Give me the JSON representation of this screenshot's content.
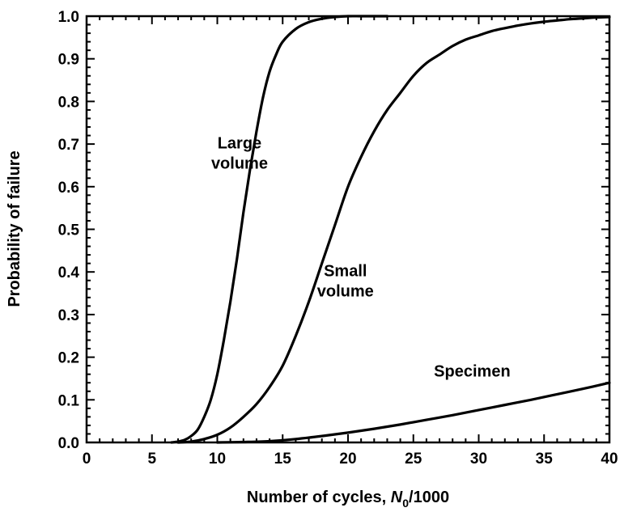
{
  "chart_data": {
    "type": "line",
    "xlabel": "Number of cycles, ",
    "xlabel_var": "N",
    "xlabel_sub": "0",
    "xlabel_suffix": "/1000",
    "ylabel": "Probability of failure",
    "xlim": [
      0,
      40
    ],
    "ylim": [
      0,
      1.0
    ],
    "x_ticks": [
      "0",
      "5",
      "10",
      "15",
      "20",
      "25",
      "30",
      "35",
      "40"
    ],
    "y_ticks": [
      "0.0",
      "0.1",
      "0.2",
      "0.3",
      "0.4",
      "0.5",
      "0.6",
      "0.7",
      "0.8",
      "0.9",
      "1.0"
    ],
    "grid": false,
    "series": [
      {
        "x": [
          6.5,
          7,
          7.5,
          8,
          8.5,
          9,
          9.5,
          10,
          10.5,
          11,
          11.5,
          12,
          12.5,
          13,
          13.5,
          14,
          14.5,
          15,
          16,
          17,
          18,
          19,
          20,
          21,
          22,
          23
        ],
        "y": [
          0.0,
          0.002,
          0.006,
          0.015,
          0.03,
          0.06,
          0.1,
          0.16,
          0.24,
          0.33,
          0.43,
          0.54,
          0.64,
          0.73,
          0.81,
          0.87,
          0.91,
          0.94,
          0.97,
          0.986,
          0.994,
          0.998,
          1.0,
          1.0,
          1.0,
          1.0
        ]
      },
      {
        "x": [
          7,
          8,
          9,
          10,
          11,
          12,
          13,
          14,
          15,
          16,
          17,
          18,
          19,
          20,
          21,
          22,
          23,
          24,
          25,
          26,
          27,
          28,
          29,
          30,
          31,
          32,
          33,
          34,
          35,
          36,
          37,
          38,
          39,
          40
        ],
        "y": [
          0.0,
          0.002,
          0.008,
          0.018,
          0.035,
          0.06,
          0.09,
          0.13,
          0.18,
          0.25,
          0.33,
          0.42,
          0.51,
          0.6,
          0.67,
          0.73,
          0.78,
          0.82,
          0.86,
          0.89,
          0.91,
          0.93,
          0.945,
          0.955,
          0.965,
          0.972,
          0.978,
          0.983,
          0.987,
          0.99,
          0.993,
          0.995,
          0.997,
          0.998
        ]
      },
      {
        "x": [
          10,
          12,
          14,
          16,
          18,
          20,
          22,
          24,
          26,
          28,
          30,
          32,
          34,
          36,
          38,
          40
        ],
        "y": [
          0.0,
          0.001,
          0.003,
          0.008,
          0.015,
          0.023,
          0.032,
          0.042,
          0.053,
          0.064,
          0.076,
          0.088,
          0.1,
          0.113,
          0.126,
          0.14
        ]
      }
    ],
    "annotations": [
      {
        "lines": [
          "Large",
          "volume"
        ],
        "x": 11.7,
        "y": 0.69
      },
      {
        "lines": [
          "Small",
          "volume"
        ],
        "x": 19.8,
        "y": 0.39
      },
      {
        "lines": [
          "Specimen"
        ],
        "x": 29.5,
        "y": 0.155
      }
    ]
  }
}
